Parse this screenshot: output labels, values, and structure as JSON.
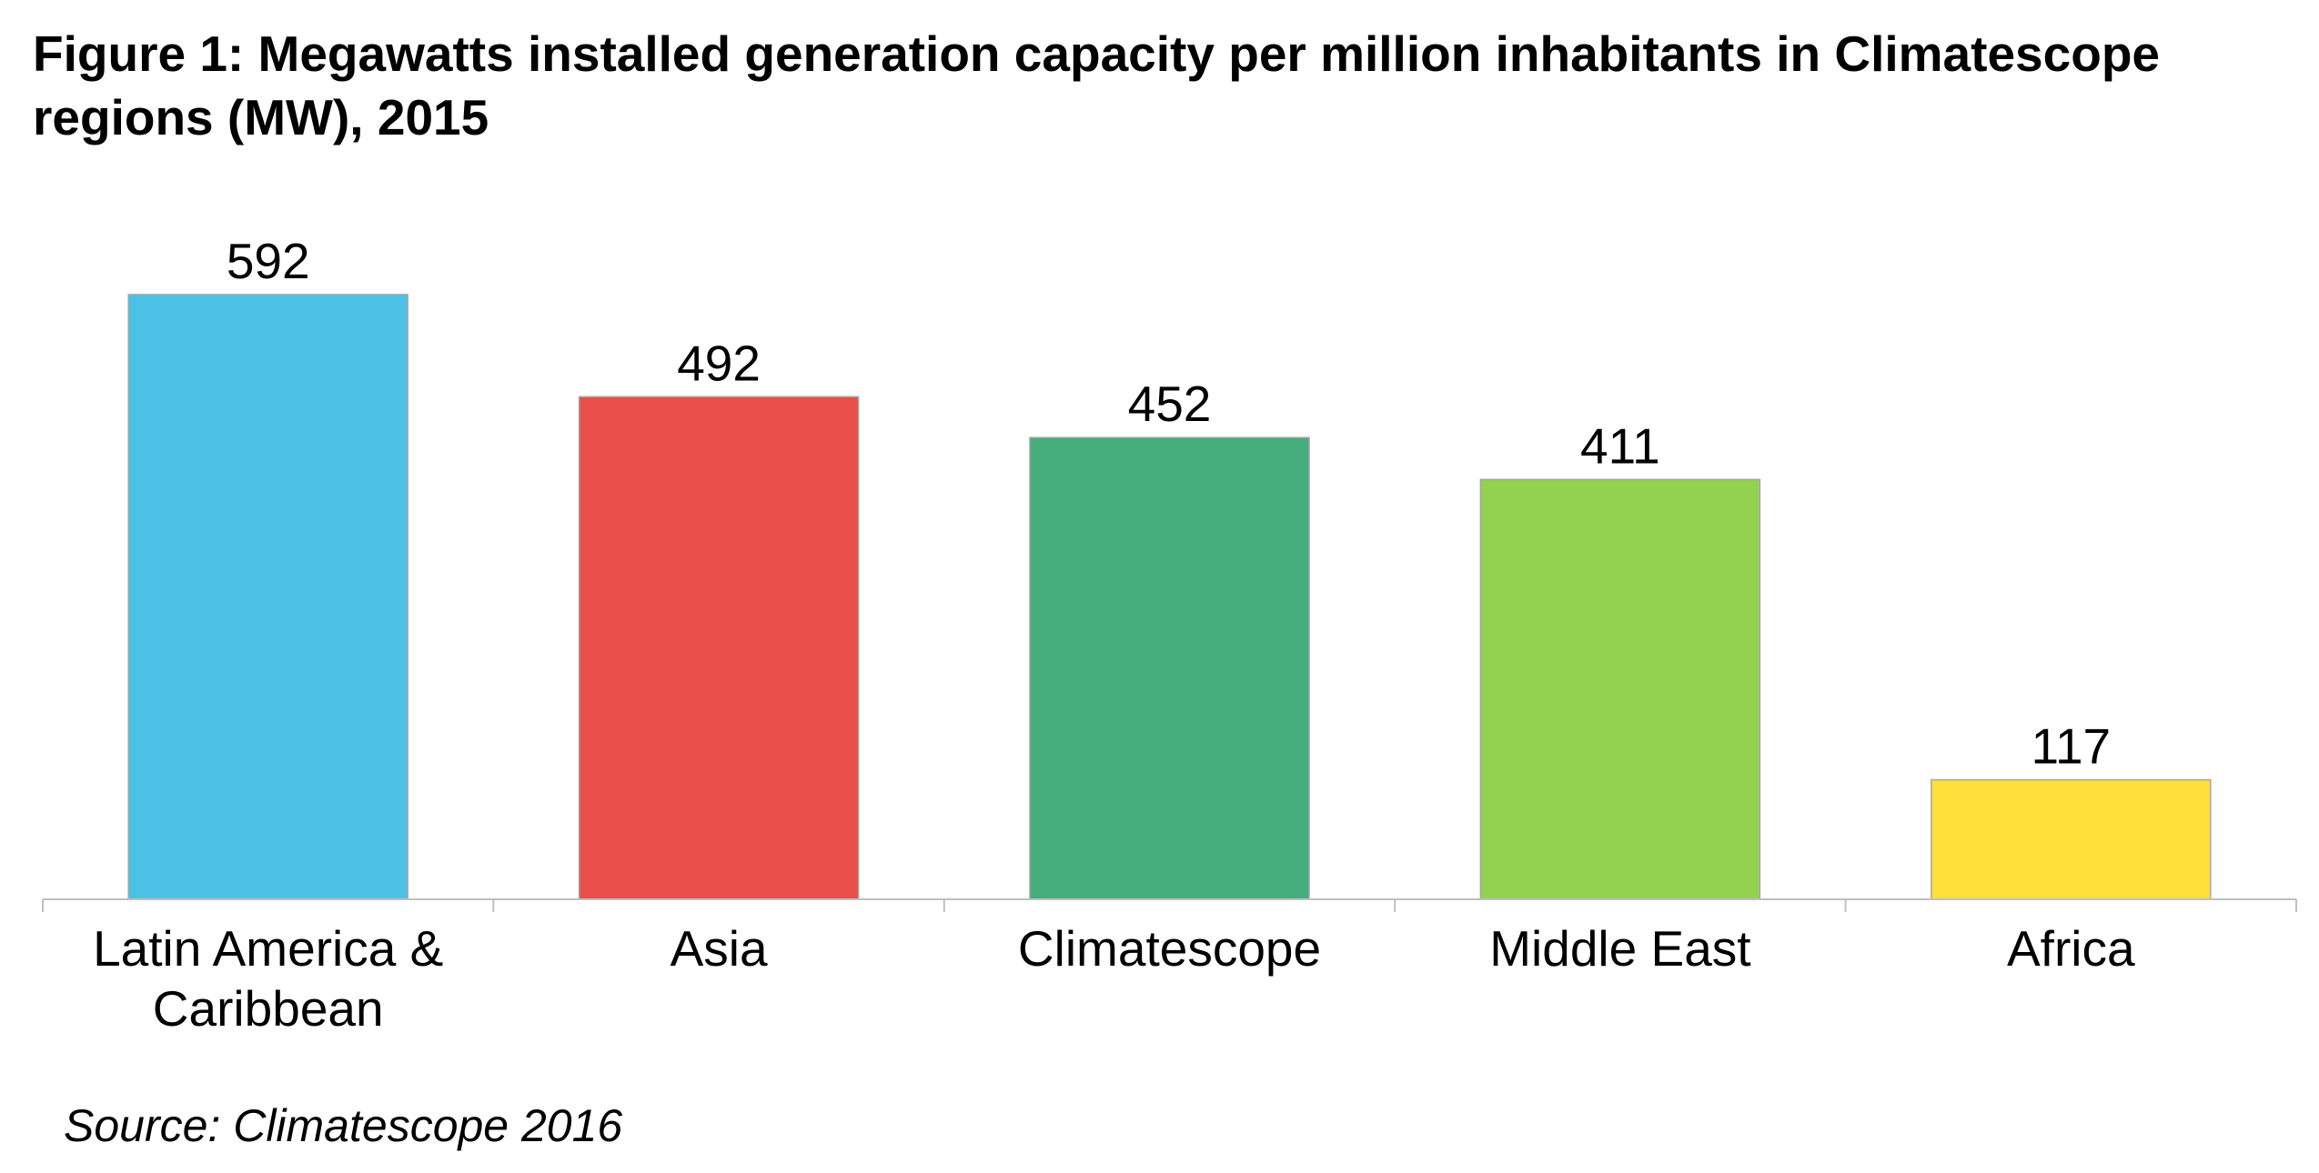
{
  "chart_data": {
    "type": "bar",
    "title": "Figure 1: Megawatts installed generation capacity per million inhabitants in Climatescope regions (MW), 2015",
    "categories": [
      [
        "Latin America &",
        "Caribbean"
      ],
      [
        "Asia"
      ],
      [
        "Climatescope"
      ],
      [
        "Middle East"
      ],
      [
        "Africa"
      ]
    ],
    "values": [
      592,
      492,
      452,
      411,
      117
    ],
    "colors": [
      "#4BC1E6",
      "#EB4F4B",
      "#45AE7C",
      "#93D150",
      "#FDE03A"
    ],
    "ylim": [
      0,
      640
    ],
    "grid": false,
    "legend": "none",
    "data_labels": true,
    "source": "Source: Climatescope 2016"
  }
}
